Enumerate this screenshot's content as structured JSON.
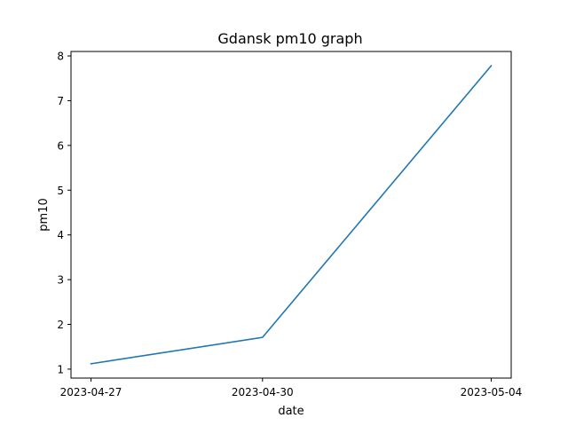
{
  "chart_data": {
    "type": "line",
    "title": "Gdansk pm10 graph",
    "xlabel": "date",
    "ylabel": "pm10",
    "x": [
      "2023-04-27",
      "2023-04-30",
      "2023-05-04"
    ],
    "series": [
      {
        "values": [
          1.12,
          1.71,
          7.78
        ],
        "color": "#1f77b4"
      }
    ],
    "ylim": [
      0.8,
      8.1
    ],
    "yticks": [
      1,
      2,
      3,
      4,
      5,
      6,
      7,
      8
    ],
    "grid": false,
    "legend": "none"
  }
}
